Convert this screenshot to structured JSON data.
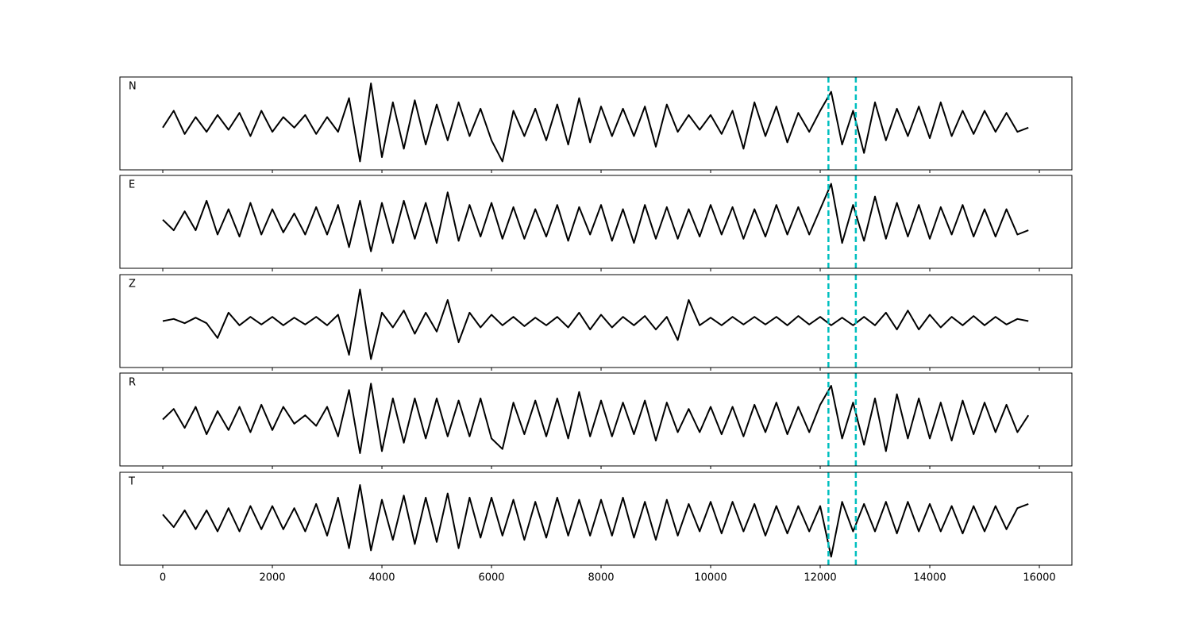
{
  "chart_data": [
    {
      "type": "line",
      "label": "N",
      "color": "#000000",
      "xlim": [
        -783,
        16594
      ],
      "ylim": [
        -1.1,
        1.1
      ],
      "vlines": [
        12150,
        12650
      ],
      "vline_color": "#00bfbf",
      "x": [
        0,
        200,
        400,
        600,
        800,
        1000,
        1200,
        1400,
        1600,
        1800,
        2000,
        2200,
        2400,
        2600,
        2800,
        3000,
        3200,
        3400,
        3600,
        3800,
        4000,
        4200,
        4400,
        4600,
        4800,
        5000,
        5200,
        5400,
        5600,
        5800,
        6000,
        6200,
        6400,
        6600,
        6800,
        7000,
        7200,
        7400,
        7600,
        7800,
        8000,
        8200,
        8400,
        8600,
        8800,
        9000,
        9200,
        9400,
        9600,
        9800,
        10000,
        10200,
        10400,
        10600,
        10800,
        11000,
        11200,
        11400,
        11600,
        11800,
        12000,
        12200,
        12400,
        12600,
        12800,
        13000,
        13200,
        13400,
        13600,
        13800,
        14000,
        14200,
        14400,
        14600,
        14800,
        15000,
        15200,
        15400,
        15600,
        15800
      ],
      "values": [
        -0.1,
        0.3,
        -0.25,
        0.15,
        -0.2,
        0.2,
        -0.15,
        0.25,
        -0.3,
        0.3,
        -0.2,
        0.15,
        -0.1,
        0.2,
        -0.25,
        0.15,
        -0.2,
        0.6,
        -0.9,
        0.95,
        -0.8,
        0.5,
        -0.6,
        0.55,
        -0.5,
        0.45,
        -0.4,
        0.5,
        -0.3,
        0.35,
        -0.4,
        -0.9,
        0.3,
        -0.3,
        0.35,
        -0.4,
        0.45,
        -0.5,
        0.6,
        -0.45,
        0.4,
        -0.3,
        0.35,
        -0.3,
        0.4,
        -0.55,
        0.45,
        -0.2,
        0.2,
        -0.15,
        0.2,
        -0.25,
        0.3,
        -0.6,
        0.5,
        -0.3,
        0.4,
        -0.45,
        0.25,
        -0.2,
        0.3,
        0.75,
        -0.5,
        0.3,
        -0.7,
        0.5,
        -0.4,
        0.35,
        -0.3,
        0.4,
        -0.35,
        0.5,
        -0.3,
        0.3,
        -0.25,
        0.3,
        -0.2,
        0.25,
        -0.2,
        -0.1
      ]
    },
    {
      "type": "line",
      "label": "E",
      "color": "#000000",
      "xlim": [
        -783,
        16594
      ],
      "ylim": [
        -1.1,
        1.1
      ],
      "vlines": [
        12150,
        12650
      ],
      "vline_color": "#00bfbf",
      "x": [
        0,
        200,
        400,
        600,
        800,
        1000,
        1200,
        1400,
        1600,
        1800,
        2000,
        2200,
        2400,
        2600,
        2800,
        3000,
        3200,
        3400,
        3600,
        3800,
        4000,
        4200,
        4400,
        4600,
        4800,
        5000,
        5200,
        5400,
        5600,
        5800,
        6000,
        6200,
        6400,
        6600,
        6800,
        7000,
        7200,
        7400,
        7600,
        7800,
        8000,
        8200,
        8400,
        8600,
        8800,
        9000,
        9200,
        9400,
        9600,
        9800,
        10000,
        10200,
        10400,
        10600,
        10800,
        11000,
        11200,
        11400,
        11600,
        11800,
        12000,
        12200,
        12400,
        12600,
        12800,
        13000,
        13200,
        13400,
        13600,
        13800,
        14000,
        14200,
        14400,
        14600,
        14800,
        15000,
        15200,
        15400,
        15600,
        15800
      ],
      "values": [
        0.05,
        -0.2,
        0.25,
        -0.2,
        0.5,
        -0.3,
        0.3,
        -0.35,
        0.45,
        -0.3,
        0.3,
        -0.25,
        0.2,
        -0.3,
        0.35,
        -0.3,
        0.4,
        -0.6,
        0.5,
        -0.7,
        0.45,
        -0.5,
        0.5,
        -0.4,
        0.45,
        -0.5,
        0.7,
        -0.45,
        0.4,
        -0.35,
        0.45,
        -0.4,
        0.35,
        -0.4,
        0.3,
        -0.35,
        0.4,
        -0.45,
        0.35,
        -0.3,
        0.4,
        -0.45,
        0.3,
        -0.5,
        0.4,
        -0.4,
        0.35,
        -0.4,
        0.3,
        -0.35,
        0.4,
        -0.3,
        0.35,
        -0.4,
        0.3,
        -0.35,
        0.4,
        -0.3,
        0.35,
        -0.3,
        0.3,
        0.9,
        -0.5,
        0.4,
        -0.45,
        0.6,
        -0.4,
        0.45,
        -0.35,
        0.4,
        -0.4,
        0.35,
        -0.3,
        0.4,
        -0.35,
        0.3,
        -0.35,
        0.3,
        -0.3,
        -0.2
      ]
    },
    {
      "type": "line",
      "label": "Z",
      "color": "#000000",
      "xlim": [
        -783,
        16594
      ],
      "ylim": [
        -1.1,
        1.1
      ],
      "vlines": [
        12150,
        12650
      ],
      "vline_color": "#00bfbf",
      "x": [
        0,
        200,
        400,
        600,
        800,
        1000,
        1200,
        1400,
        1600,
        1800,
        2000,
        2200,
        2400,
        2600,
        2800,
        3000,
        3200,
        3400,
        3600,
        3800,
        4000,
        4200,
        4400,
        4600,
        4800,
        5000,
        5200,
        5400,
        5600,
        5800,
        6000,
        6200,
        6400,
        6600,
        6800,
        7000,
        7200,
        7400,
        7600,
        7800,
        8000,
        8200,
        8400,
        8600,
        8800,
        9000,
        9200,
        9400,
        9600,
        9800,
        10000,
        10200,
        10400,
        10600,
        10800,
        11000,
        11200,
        11400,
        11600,
        11800,
        12000,
        12200,
        12400,
        12600,
        12800,
        13000,
        13200,
        13400,
        13600,
        13800,
        14000,
        14200,
        14400,
        14600,
        14800,
        15000,
        15200,
        15400,
        15600,
        15800
      ],
      "values": [
        0.0,
        0.05,
        -0.05,
        0.08,
        -0.05,
        -0.4,
        0.2,
        -0.1,
        0.1,
        -0.08,
        0.1,
        -0.1,
        0.08,
        -0.08,
        0.1,
        -0.1,
        0.15,
        -0.8,
        0.75,
        -0.9,
        0.2,
        -0.15,
        0.25,
        -0.3,
        0.2,
        -0.25,
        0.5,
        -0.5,
        0.2,
        -0.15,
        0.15,
        -0.1,
        0.1,
        -0.12,
        0.08,
        -0.1,
        0.1,
        -0.15,
        0.2,
        -0.2,
        0.15,
        -0.15,
        0.1,
        -0.1,
        0.12,
        -0.2,
        0.1,
        -0.45,
        0.5,
        -0.1,
        0.08,
        -0.1,
        0.1,
        -0.08,
        0.1,
        -0.08,
        0.1,
        -0.1,
        0.12,
        -0.08,
        0.1,
        -0.1,
        0.08,
        -0.1,
        0.1,
        -0.1,
        0.2,
        -0.2,
        0.25,
        -0.2,
        0.15,
        -0.15,
        0.1,
        -0.1,
        0.12,
        -0.1,
        0.1,
        -0.08,
        0.05,
        0.0
      ]
    },
    {
      "type": "line",
      "label": "R",
      "color": "#000000",
      "xlim": [
        -783,
        16594
      ],
      "ylim": [
        -1.1,
        1.1
      ],
      "vlines": [
        12150,
        12650
      ],
      "vline_color": "#00bfbf",
      "x": [
        0,
        200,
        400,
        600,
        800,
        1000,
        1200,
        1400,
        1600,
        1800,
        2000,
        2200,
        2400,
        2600,
        2800,
        3000,
        3200,
        3400,
        3600,
        3800,
        4000,
        4200,
        4400,
        4600,
        4800,
        5000,
        5200,
        5400,
        5600,
        5800,
        6000,
        6200,
        6400,
        6600,
        6800,
        7000,
        7200,
        7400,
        7600,
        7800,
        8000,
        8200,
        8400,
        8600,
        8800,
        9000,
        9200,
        9400,
        9600,
        9800,
        10000,
        10200,
        10400,
        10600,
        10800,
        11000,
        11200,
        11400,
        11600,
        11800,
        12000,
        12200,
        12400,
        12600,
        12800,
        13000,
        13200,
        13400,
        13600,
        13800,
        14000,
        14200,
        14400,
        14600,
        14800,
        15000,
        15200,
        15400,
        15600,
        15800
      ],
      "values": [
        0.0,
        0.25,
        -0.2,
        0.3,
        -0.35,
        0.2,
        -0.25,
        0.3,
        -0.3,
        0.35,
        -0.25,
        0.3,
        -0.1,
        0.1,
        -0.15,
        0.3,
        -0.4,
        0.7,
        -0.8,
        0.85,
        -0.75,
        0.5,
        -0.55,
        0.5,
        -0.45,
        0.5,
        -0.4,
        0.45,
        -0.4,
        0.5,
        -0.45,
        -0.7,
        0.4,
        -0.35,
        0.45,
        -0.4,
        0.5,
        -0.45,
        0.65,
        -0.4,
        0.45,
        -0.4,
        0.4,
        -0.35,
        0.45,
        -0.5,
        0.4,
        -0.3,
        0.25,
        -0.3,
        0.3,
        -0.35,
        0.3,
        -0.4,
        0.35,
        -0.3,
        0.4,
        -0.35,
        0.3,
        -0.3,
        0.35,
        0.8,
        -0.45,
        0.4,
        -0.6,
        0.5,
        -0.75,
        0.6,
        -0.45,
        0.5,
        -0.45,
        0.4,
        -0.5,
        0.45,
        -0.35,
        0.4,
        -0.3,
        0.35,
        -0.3,
        0.1
      ]
    },
    {
      "type": "line",
      "label": "T",
      "color": "#000000",
      "xlim": [
        -783,
        16594
      ],
      "ylim": [
        -1.1,
        1.1
      ],
      "vlines": [
        12150,
        12650
      ],
      "vline_color": "#00bfbf",
      "xticks": [
        0,
        2000,
        4000,
        6000,
        8000,
        10000,
        12000,
        14000,
        16000
      ],
      "x": [
        0,
        200,
        400,
        600,
        800,
        1000,
        1200,
        1400,
        1600,
        1800,
        2000,
        2200,
        2400,
        2600,
        2800,
        3000,
        3200,
        3400,
        3600,
        3800,
        4000,
        4200,
        4400,
        4600,
        4800,
        5000,
        5200,
        5400,
        5600,
        5800,
        6000,
        6200,
        6400,
        6600,
        6800,
        7000,
        7200,
        7400,
        7600,
        7800,
        8000,
        8200,
        8400,
        8600,
        8800,
        9000,
        9200,
        9400,
        9600,
        9800,
        10000,
        10200,
        10400,
        10600,
        10800,
        11000,
        11200,
        11400,
        11600,
        11800,
        12000,
        12200,
        12400,
        12600,
        12800,
        13000,
        13200,
        13400,
        13600,
        13800,
        14000,
        14200,
        14400,
        14600,
        14800,
        15000,
        15200,
        15400,
        15600,
        15800
      ],
      "values": [
        0.1,
        -0.2,
        0.2,
        -0.25,
        0.2,
        -0.3,
        0.25,
        -0.3,
        0.3,
        -0.25,
        0.3,
        -0.25,
        0.25,
        -0.3,
        0.35,
        -0.4,
        0.5,
        -0.7,
        0.8,
        -0.75,
        0.45,
        -0.5,
        0.55,
        -0.6,
        0.5,
        -0.55,
        0.6,
        -0.7,
        0.5,
        -0.45,
        0.5,
        -0.4,
        0.45,
        -0.5,
        0.4,
        -0.45,
        0.5,
        -0.4,
        0.45,
        -0.4,
        0.45,
        -0.4,
        0.5,
        -0.45,
        0.4,
        -0.5,
        0.45,
        -0.4,
        0.35,
        -0.3,
        0.4,
        -0.35,
        0.4,
        -0.3,
        0.35,
        -0.4,
        0.3,
        -0.35,
        0.3,
        -0.3,
        0.3,
        -0.9,
        0.4,
        -0.3,
        0.35,
        -0.3,
        0.4,
        -0.35,
        0.4,
        -0.3,
        0.35,
        -0.3,
        0.3,
        -0.35,
        0.3,
        -0.3,
        0.3,
        -0.25,
        0.25,
        0.35
      ]
    }
  ]
}
